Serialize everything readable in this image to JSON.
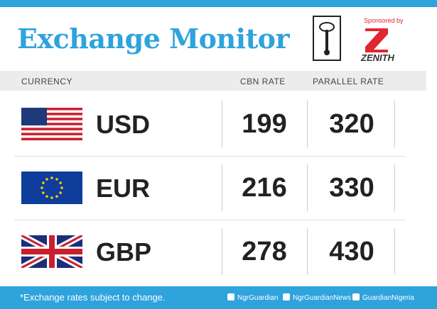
{
  "header": {
    "title": "Exchange Monitor",
    "sponsor_label": "Sponsored by",
    "sponsor": "ZENITH"
  },
  "table": {
    "columns": [
      "CURRENCY",
      "CBN RATE",
      "PARALLEL RATE"
    ],
    "rows": [
      [
        "USD",
        "199",
        "320"
      ],
      [
        "EUR",
        "216",
        "330"
      ],
      [
        "GBP",
        "278",
        "430"
      ]
    ]
  },
  "footer": {
    "note": "*Exchange rates subject to change.",
    "social": [
      "NgrGuardian",
      "NgrGuardianNews",
      "GuardianNigeria"
    ]
  }
}
